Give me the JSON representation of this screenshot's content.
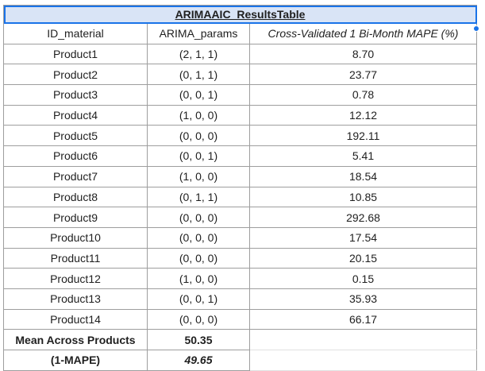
{
  "table": {
    "title": "ARIMAAIC_ResultsTable",
    "headers": [
      "ID_material",
      "ARIMA_params",
      "Cross-Validated 1 Bi-Month MAPE (%)"
    ],
    "rows": [
      {
        "id": "Product1",
        "params": "(2, 1, 1)",
        "mape": "8.70"
      },
      {
        "id": "Product2",
        "params": "(0, 1, 1)",
        "mape": "23.77"
      },
      {
        "id": "Product3",
        "params": "(0, 0, 1)",
        "mape": "0.78"
      },
      {
        "id": "Product4",
        "params": "(1, 0, 0)",
        "mape": "12.12"
      },
      {
        "id": "Product5",
        "params": "(0, 0, 0)",
        "mape": "192.11"
      },
      {
        "id": "Product6",
        "params": "(0, 0, 1)",
        "mape": "5.41"
      },
      {
        "id": "Product7",
        "params": "(1, 0, 0)",
        "mape": "18.54"
      },
      {
        "id": "Product8",
        "params": "(0, 1, 1)",
        "mape": "10.85"
      },
      {
        "id": "Product9",
        "params": "(0, 0, 0)",
        "mape": "292.68"
      },
      {
        "id": "Product10",
        "params": "(0, 0, 0)",
        "mape": "17.54"
      },
      {
        "id": "Product11",
        "params": "(0, 0, 0)",
        "mape": "20.15"
      },
      {
        "id": "Product12",
        "params": "(1, 0, 0)",
        "mape": "0.15"
      },
      {
        "id": "Product13",
        "params": "(0, 0, 1)",
        "mape": "35.93"
      },
      {
        "id": "Product14",
        "params": "(0, 0, 0)",
        "mape": "66.17"
      }
    ],
    "summary": [
      {
        "label": "Mean Across Products",
        "value": "50.35"
      },
      {
        "label": "(1-MAPE)",
        "value": "49.65"
      }
    ]
  },
  "colors": {
    "title_fill": "#d9e4f6",
    "selection": "#1a73e8",
    "grid": "#9e9e9e"
  }
}
